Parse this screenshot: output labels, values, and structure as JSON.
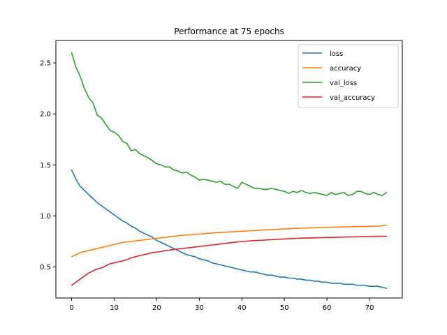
{
  "chart_data": {
    "type": "line",
    "title": "Performance at 75 epochs",
    "xlabel": "",
    "ylabel": "",
    "xlim": [
      -3.7,
      77.7
    ],
    "ylim": [
      0.195,
      2.72
    ],
    "xticks": [
      0,
      10,
      20,
      30,
      40,
      50,
      60,
      70
    ],
    "yticks": [
      0.5,
      1.0,
      1.5,
      2.0,
      2.5
    ],
    "xtick_labels": [
      "0",
      "10",
      "20",
      "30",
      "40",
      "50",
      "60",
      "70"
    ],
    "ytick_labels": [
      "0.5",
      "1.0",
      "1.5",
      "2.0",
      "2.5"
    ],
    "grid": false,
    "legend_position": "upper right",
    "series": [
      {
        "name": "loss",
        "color": "#1f77b4",
        "values": [
          1.45,
          1.36,
          1.29,
          1.25,
          1.21,
          1.17,
          1.13,
          1.1,
          1.07,
          1.04,
          1.01,
          0.98,
          0.95,
          0.93,
          0.9,
          0.88,
          0.85,
          0.83,
          0.81,
          0.79,
          0.76,
          0.74,
          0.72,
          0.7,
          0.68,
          0.66,
          0.64,
          0.62,
          0.61,
          0.6,
          0.58,
          0.57,
          0.56,
          0.54,
          0.53,
          0.52,
          0.51,
          0.5,
          0.49,
          0.48,
          0.47,
          0.46,
          0.45,
          0.45,
          0.44,
          0.43,
          0.42,
          0.42,
          0.41,
          0.4,
          0.4,
          0.39,
          0.39,
          0.38,
          0.38,
          0.37,
          0.37,
          0.36,
          0.36,
          0.35,
          0.35,
          0.34,
          0.34,
          0.34,
          0.33,
          0.33,
          0.33,
          0.32,
          0.32,
          0.32,
          0.31,
          0.31,
          0.31,
          0.3,
          0.29
        ]
      },
      {
        "name": "accuracy",
        "color": "#ff7f0e",
        "values": [
          0.6,
          0.62,
          0.64,
          0.65,
          0.66,
          0.67,
          0.68,
          0.69,
          0.7,
          0.71,
          0.72,
          0.73,
          0.74,
          0.745,
          0.75,
          0.755,
          0.76,
          0.765,
          0.77,
          0.775,
          0.78,
          0.785,
          0.79,
          0.795,
          0.8,
          0.805,
          0.81,
          0.812,
          0.815,
          0.82,
          0.822,
          0.825,
          0.83,
          0.832,
          0.835,
          0.838,
          0.84,
          0.842,
          0.845,
          0.848,
          0.85,
          0.852,
          0.855,
          0.857,
          0.86,
          0.862,
          0.864,
          0.866,
          0.868,
          0.87,
          0.872,
          0.874,
          0.876,
          0.878,
          0.88,
          0.881,
          0.883,
          0.884,
          0.886,
          0.887,
          0.888,
          0.889,
          0.89,
          0.891,
          0.892,
          0.893,
          0.894,
          0.895,
          0.896,
          0.897,
          0.898,
          0.899,
          0.9,
          0.905,
          0.91
        ]
      },
      {
        "name": "val_loss",
        "color": "#2ca02c",
        "values": [
          2.6,
          2.46,
          2.37,
          2.25,
          2.16,
          2.11,
          1.99,
          1.96,
          1.9,
          1.84,
          1.82,
          1.79,
          1.73,
          1.71,
          1.64,
          1.65,
          1.61,
          1.59,
          1.57,
          1.54,
          1.51,
          1.5,
          1.48,
          1.48,
          1.45,
          1.44,
          1.42,
          1.43,
          1.4,
          1.38,
          1.35,
          1.36,
          1.35,
          1.34,
          1.33,
          1.34,
          1.31,
          1.31,
          1.29,
          1.27,
          1.33,
          1.31,
          1.29,
          1.27,
          1.27,
          1.26,
          1.26,
          1.27,
          1.26,
          1.25,
          1.24,
          1.22,
          1.24,
          1.23,
          1.25,
          1.23,
          1.22,
          1.23,
          1.22,
          1.21,
          1.2,
          1.23,
          1.21,
          1.22,
          1.23,
          1.2,
          1.21,
          1.24,
          1.24,
          1.22,
          1.21,
          1.23,
          1.21,
          1.2,
          1.23
        ]
      },
      {
        "name": "val_accuracy",
        "color": "#d62728",
        "values": [
          0.32,
          0.35,
          0.38,
          0.41,
          0.44,
          0.46,
          0.48,
          0.49,
          0.51,
          0.53,
          0.54,
          0.55,
          0.56,
          0.57,
          0.59,
          0.6,
          0.61,
          0.62,
          0.63,
          0.64,
          0.645,
          0.65,
          0.66,
          0.665,
          0.67,
          0.675,
          0.68,
          0.685,
          0.69,
          0.695,
          0.7,
          0.705,
          0.71,
          0.715,
          0.72,
          0.725,
          0.73,
          0.735,
          0.74,
          0.745,
          0.75,
          0.752,
          0.755,
          0.758,
          0.76,
          0.762,
          0.765,
          0.767,
          0.77,
          0.772,
          0.774,
          0.776,
          0.778,
          0.78,
          0.782,
          0.783,
          0.784,
          0.785,
          0.786,
          0.787,
          0.788,
          0.789,
          0.79,
          0.791,
          0.792,
          0.793,
          0.794,
          0.795,
          0.796,
          0.797,
          0.798,
          0.799,
          0.8,
          0.8,
          0.8
        ]
      }
    ]
  }
}
